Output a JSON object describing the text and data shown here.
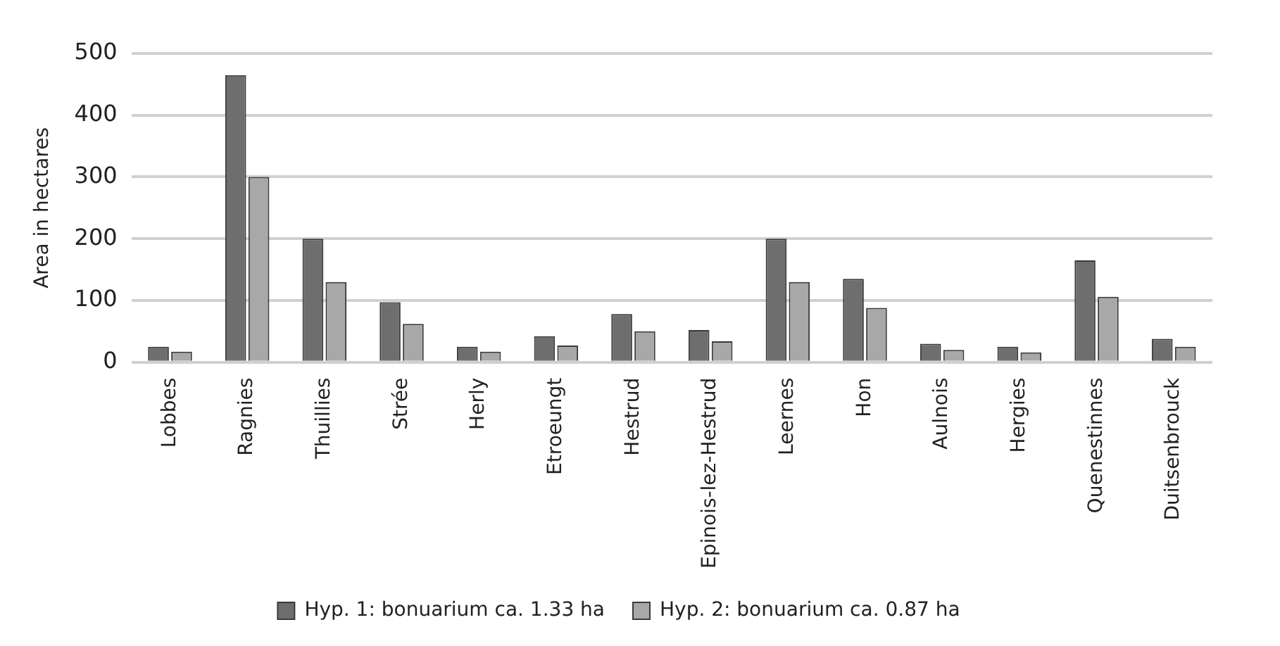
{
  "chart_data": {
    "type": "bar",
    "ylabel": "Area in hectares",
    "categories": [
      "Lobbes",
      "Ragnies",
      "Thuillies",
      "Strée",
      "Herly",
      "Etroeungt",
      "Hestrud",
      "Epinois-lez-Hestrud",
      "Leernes",
      "Hon",
      "Aulnois",
      "Hergies",
      "Quenestinnes",
      "Duitsenbrouck"
    ],
    "series": [
      {
        "name": "Hyp. 1: bonuarium ca. 1.33 ha",
        "color": "#6e6e6e",
        "values": [
          25,
          465,
          200,
          97,
          25,
          42,
          78,
          52,
          200,
          135,
          30,
          25,
          165,
          38
        ]
      },
      {
        "name": "Hyp. 2: bonuarium ca. 0.87 ha",
        "color": "#a8a8a8",
        "values": [
          17,
          300,
          130,
          62,
          17,
          27,
          50,
          34,
          130,
          88,
          20,
          16,
          106,
          25
        ]
      }
    ],
    "ylim": [
      0,
      500
    ],
    "yticks": [
      0,
      100,
      200,
      300,
      400,
      500
    ],
    "grid": "y",
    "legend": "bottom"
  }
}
